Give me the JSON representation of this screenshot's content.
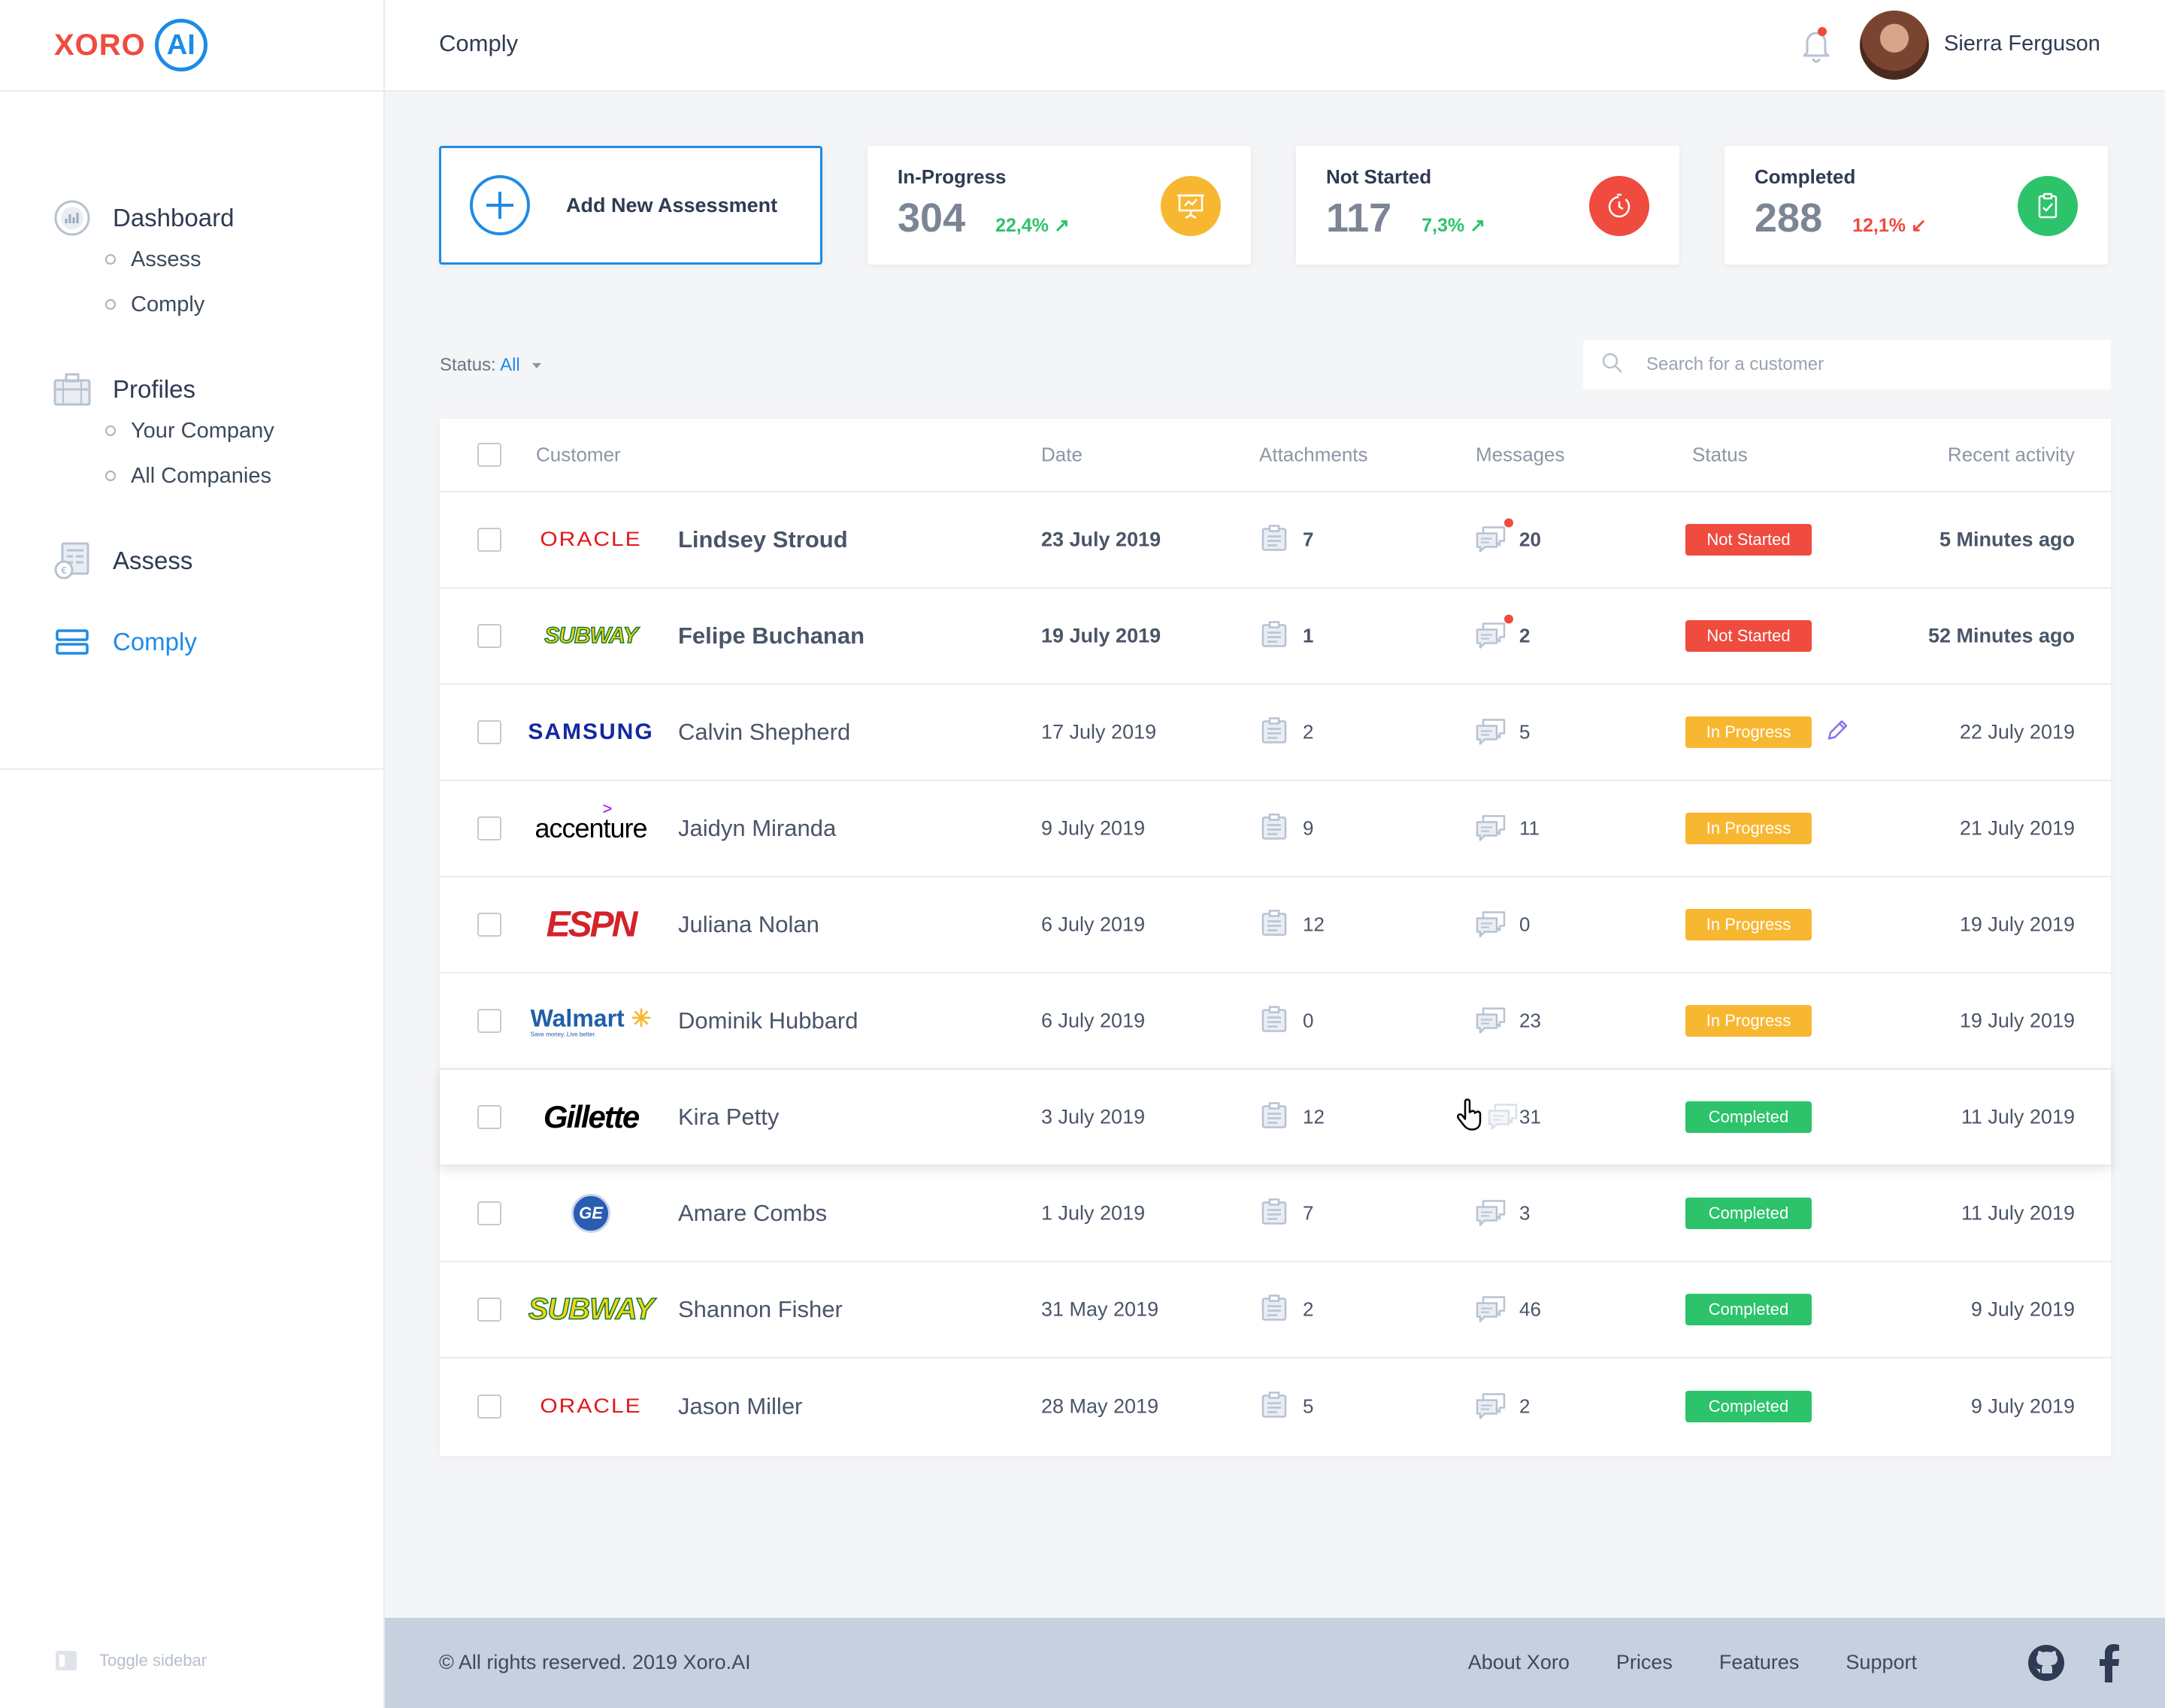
{
  "brand": {
    "name": "XORO",
    "ai": "AI"
  },
  "sidebar": {
    "groups": [
      {
        "label": "Dashboard",
        "icon": "dashboard-icon",
        "subs": [
          "Assess",
          "Comply"
        ]
      },
      {
        "label": "Profiles",
        "icon": "briefcase-icon",
        "subs": [
          "Your Company",
          "All Companies"
        ]
      },
      {
        "label": "Assess",
        "icon": "calculator-icon",
        "subs": []
      },
      {
        "label": "Comply",
        "icon": "server-icon",
        "subs": [],
        "active": true
      }
    ],
    "toggle_label": "Toggle sidebar"
  },
  "topbar": {
    "title": "Comply",
    "user_name": "Sierra Ferguson"
  },
  "cards": {
    "add_label": "Add New Assessment",
    "stats": [
      {
        "title": "In-Progress",
        "value": "304",
        "pct": "22,4%",
        "trend": "up",
        "color": "#f7b731",
        "icon": "presentation-icon"
      },
      {
        "title": "Not Started",
        "value": "117",
        "pct": "7,3%",
        "trend": "up",
        "color": "#ef4b3f",
        "icon": "timer-icon"
      },
      {
        "title": "Completed",
        "value": "288",
        "pct": "12,1%",
        "trend": "down",
        "color": "#2cc36b",
        "icon": "clipboard-icon"
      }
    ]
  },
  "filter": {
    "status_label": "Status:",
    "status_value": "All",
    "search_placeholder": "Search for a customer"
  },
  "table": {
    "headers": [
      "Customer",
      "Date",
      "Attachments",
      "Messages",
      "Status",
      "Recent activity"
    ],
    "rows": [
      {
        "brand": "ORACLE",
        "name": "Lindsey Stroud",
        "date": "23 July 2019",
        "attachments": "7",
        "messages": "20",
        "status": "Not Started",
        "recent": "5 Minutes ago",
        "unread": true
      },
      {
        "brand": "SUBWAY",
        "name": "Felipe Buchanan",
        "date": "19 July 2019",
        "attachments": "1",
        "messages": "2",
        "status": "Not Started",
        "recent": "52 Minutes ago",
        "unread": true
      },
      {
        "brand": "SAMSUNG",
        "name": "Calvin Shepherd",
        "date": "17 July 2019",
        "attachments": "2",
        "messages": "5",
        "status": "In Progress",
        "recent": "22 July 2019"
      },
      {
        "brand": "accenture",
        "name": "Jaidyn Miranda",
        "date": "9 July 2019",
        "attachments": "9",
        "messages": "11",
        "status": "In Progress",
        "recent": "21 July 2019"
      },
      {
        "brand": "ESPN",
        "name": "Juliana Nolan",
        "date": "6 July 2019",
        "attachments": "12",
        "messages": "0",
        "status": "In Progress",
        "recent": "19 July 2019"
      },
      {
        "brand": "Walmart",
        "brand_tagline": "Save money. Live better.",
        "name": "Dominik Hubbard",
        "date": "6 July 2019",
        "attachments": "0",
        "messages": "23",
        "status": "In Progress",
        "recent": "19 July 2019"
      },
      {
        "brand": "Gillette",
        "name": "Kira Petty",
        "date": "3 July 2019",
        "attachments": "12",
        "messages": "31",
        "status": "Completed",
        "recent": "11 July 2019"
      },
      {
        "brand": "GE",
        "name": "Amare Combs",
        "date": "1 July 2019",
        "attachments": "7",
        "messages": "3",
        "status": "Completed",
        "recent": "11 July 2019"
      },
      {
        "brand": "SUBWAY",
        "name": "Shannon Fisher",
        "date": "31 May 2019",
        "attachments": "2",
        "messages": "46",
        "status": "Completed",
        "recent": "9 July 2019"
      },
      {
        "brand": "ORACLE",
        "name": "Jason Miller",
        "date": "28 May 2019",
        "attachments": "5",
        "messages": "2",
        "status": "Completed",
        "recent": "9 July 2019"
      }
    ]
  },
  "footer": {
    "copyright": "© All rights reserved. 2019 Xoro.AI",
    "links": [
      "About Xoro",
      "Prices",
      "Features",
      "Support"
    ]
  }
}
